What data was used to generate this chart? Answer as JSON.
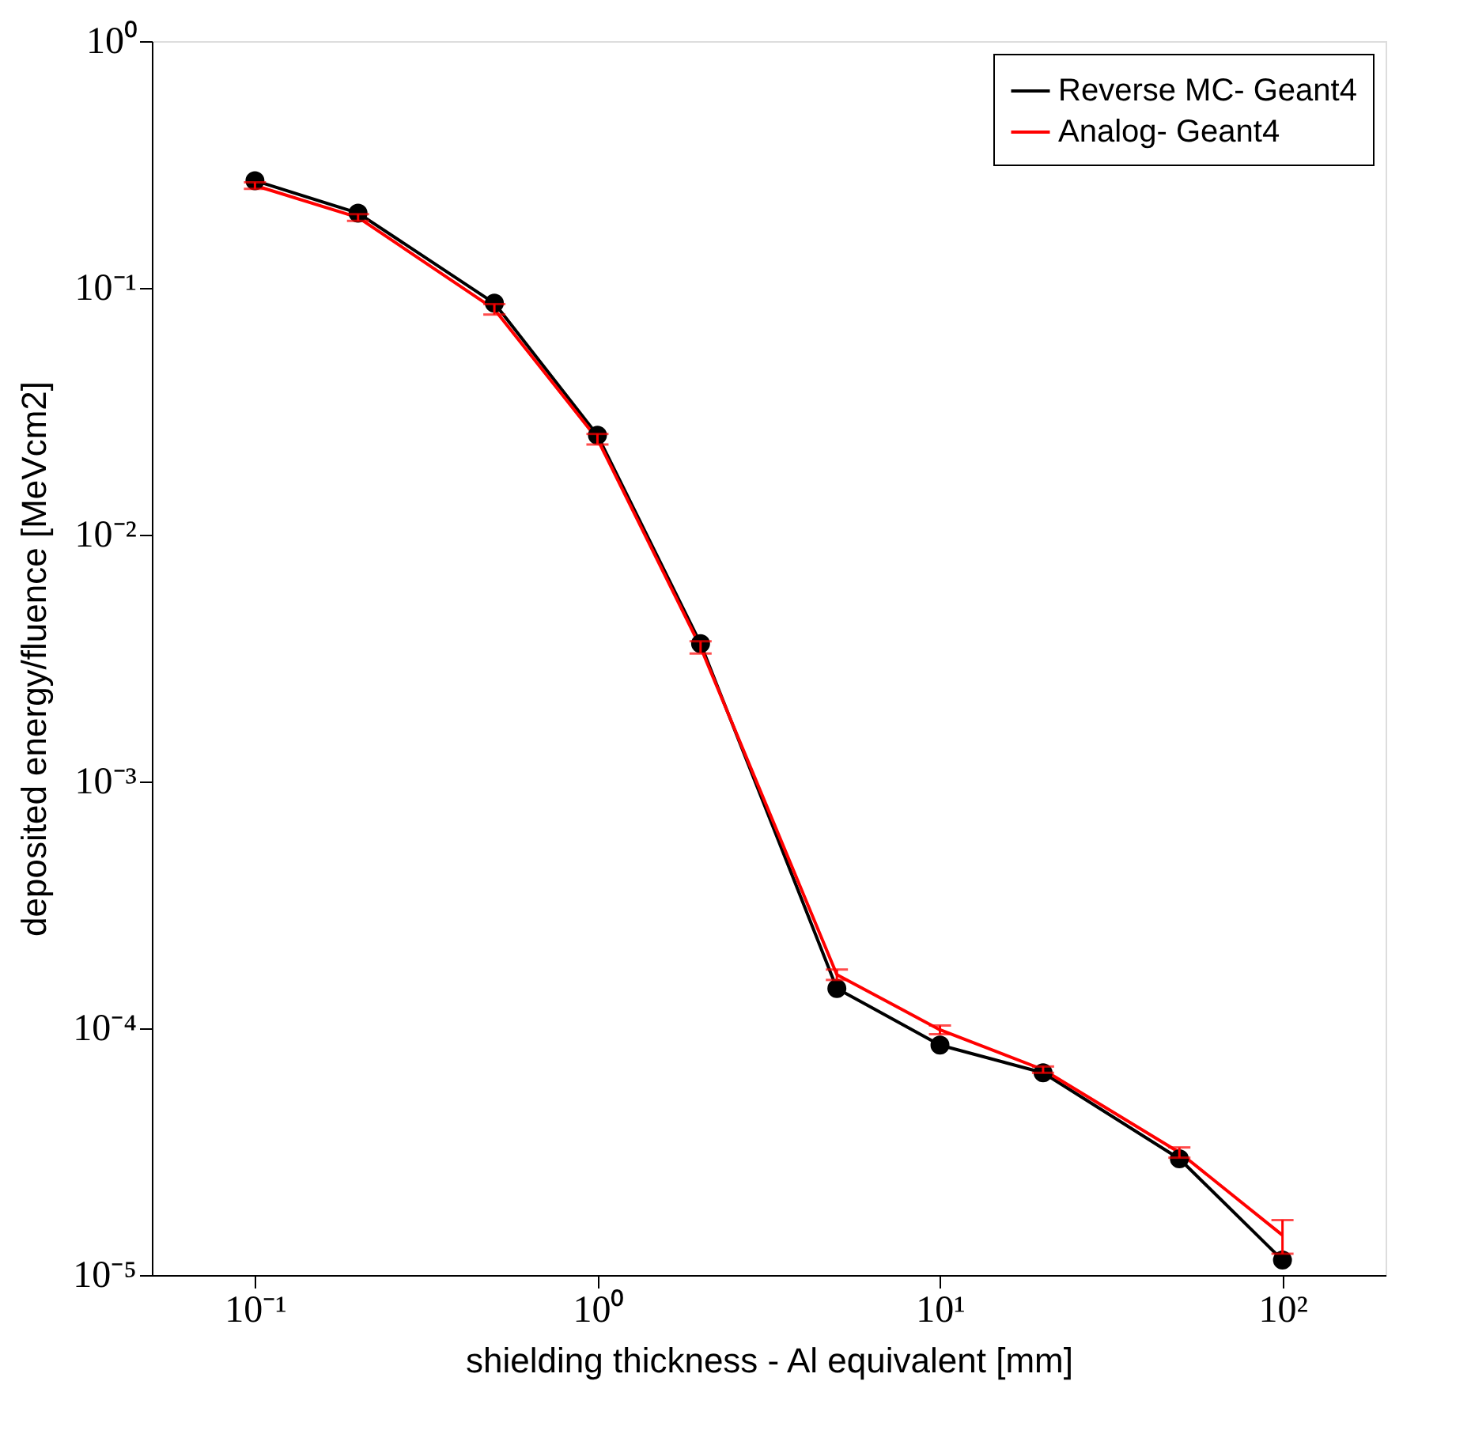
{
  "chart_data": {
    "type": "line",
    "xlabel": "shielding thickness - Al equivalent [mm]",
    "ylabel": "deposited energy/fluence [MeVcm2]",
    "x": [
      0.1,
      0.2,
      0.5,
      1,
      2,
      5,
      10,
      20,
      50,
      100
    ],
    "series": [
      {
        "name": "Reverse MC- Geant4",
        "color": "#000000",
        "marker": "circle",
        "values": [
          0.272,
          0.201,
          0.0867,
          0.0253,
          0.00362,
          0.000145,
          8.55e-05,
          6.6e-05,
          2.96e-05,
          1.15e-05
        ]
      },
      {
        "name": "Analog- Geant4",
        "color": "#ff0000",
        "marker": "none",
        "values": [
          0.26,
          0.193,
          0.082,
          0.0244,
          0.0035,
          0.000165,
          9.86e-05,
          6.8e-05,
          3.14e-05,
          1.45e-05
        ],
        "errors": [
          0.008,
          0.006,
          0.004,
          0.0012,
          0.0002,
          8e-06,
          4e-06,
          2e-06,
          1.5e-06,
          [
            1.22e-05,
            1.67e-05
          ]
        ]
      }
    ],
    "log": "xy",
    "xlim": [
      0.05,
      200
    ],
    "ylim": [
      1e-05,
      1
    ],
    "xticks": [
      {
        "value": 0.1,
        "label": "10⁻¹"
      },
      {
        "value": 1,
        "label": "10⁰"
      },
      {
        "value": 10,
        "label": "10¹"
      },
      {
        "value": 100,
        "label": "10²"
      }
    ],
    "yticks": [
      {
        "value": 1e-05,
        "label": "10⁻⁵"
      },
      {
        "value": 0.0001,
        "label": "10⁻⁴"
      },
      {
        "value": 0.001,
        "label": "10⁻³"
      },
      {
        "value": 0.01,
        "label": "10⁻²"
      },
      {
        "value": 0.1,
        "label": "10⁻¹"
      },
      {
        "value": 1,
        "label": "10⁰"
      }
    ],
    "grid": false,
    "legend": "top right",
    "line_style": "solid"
  }
}
